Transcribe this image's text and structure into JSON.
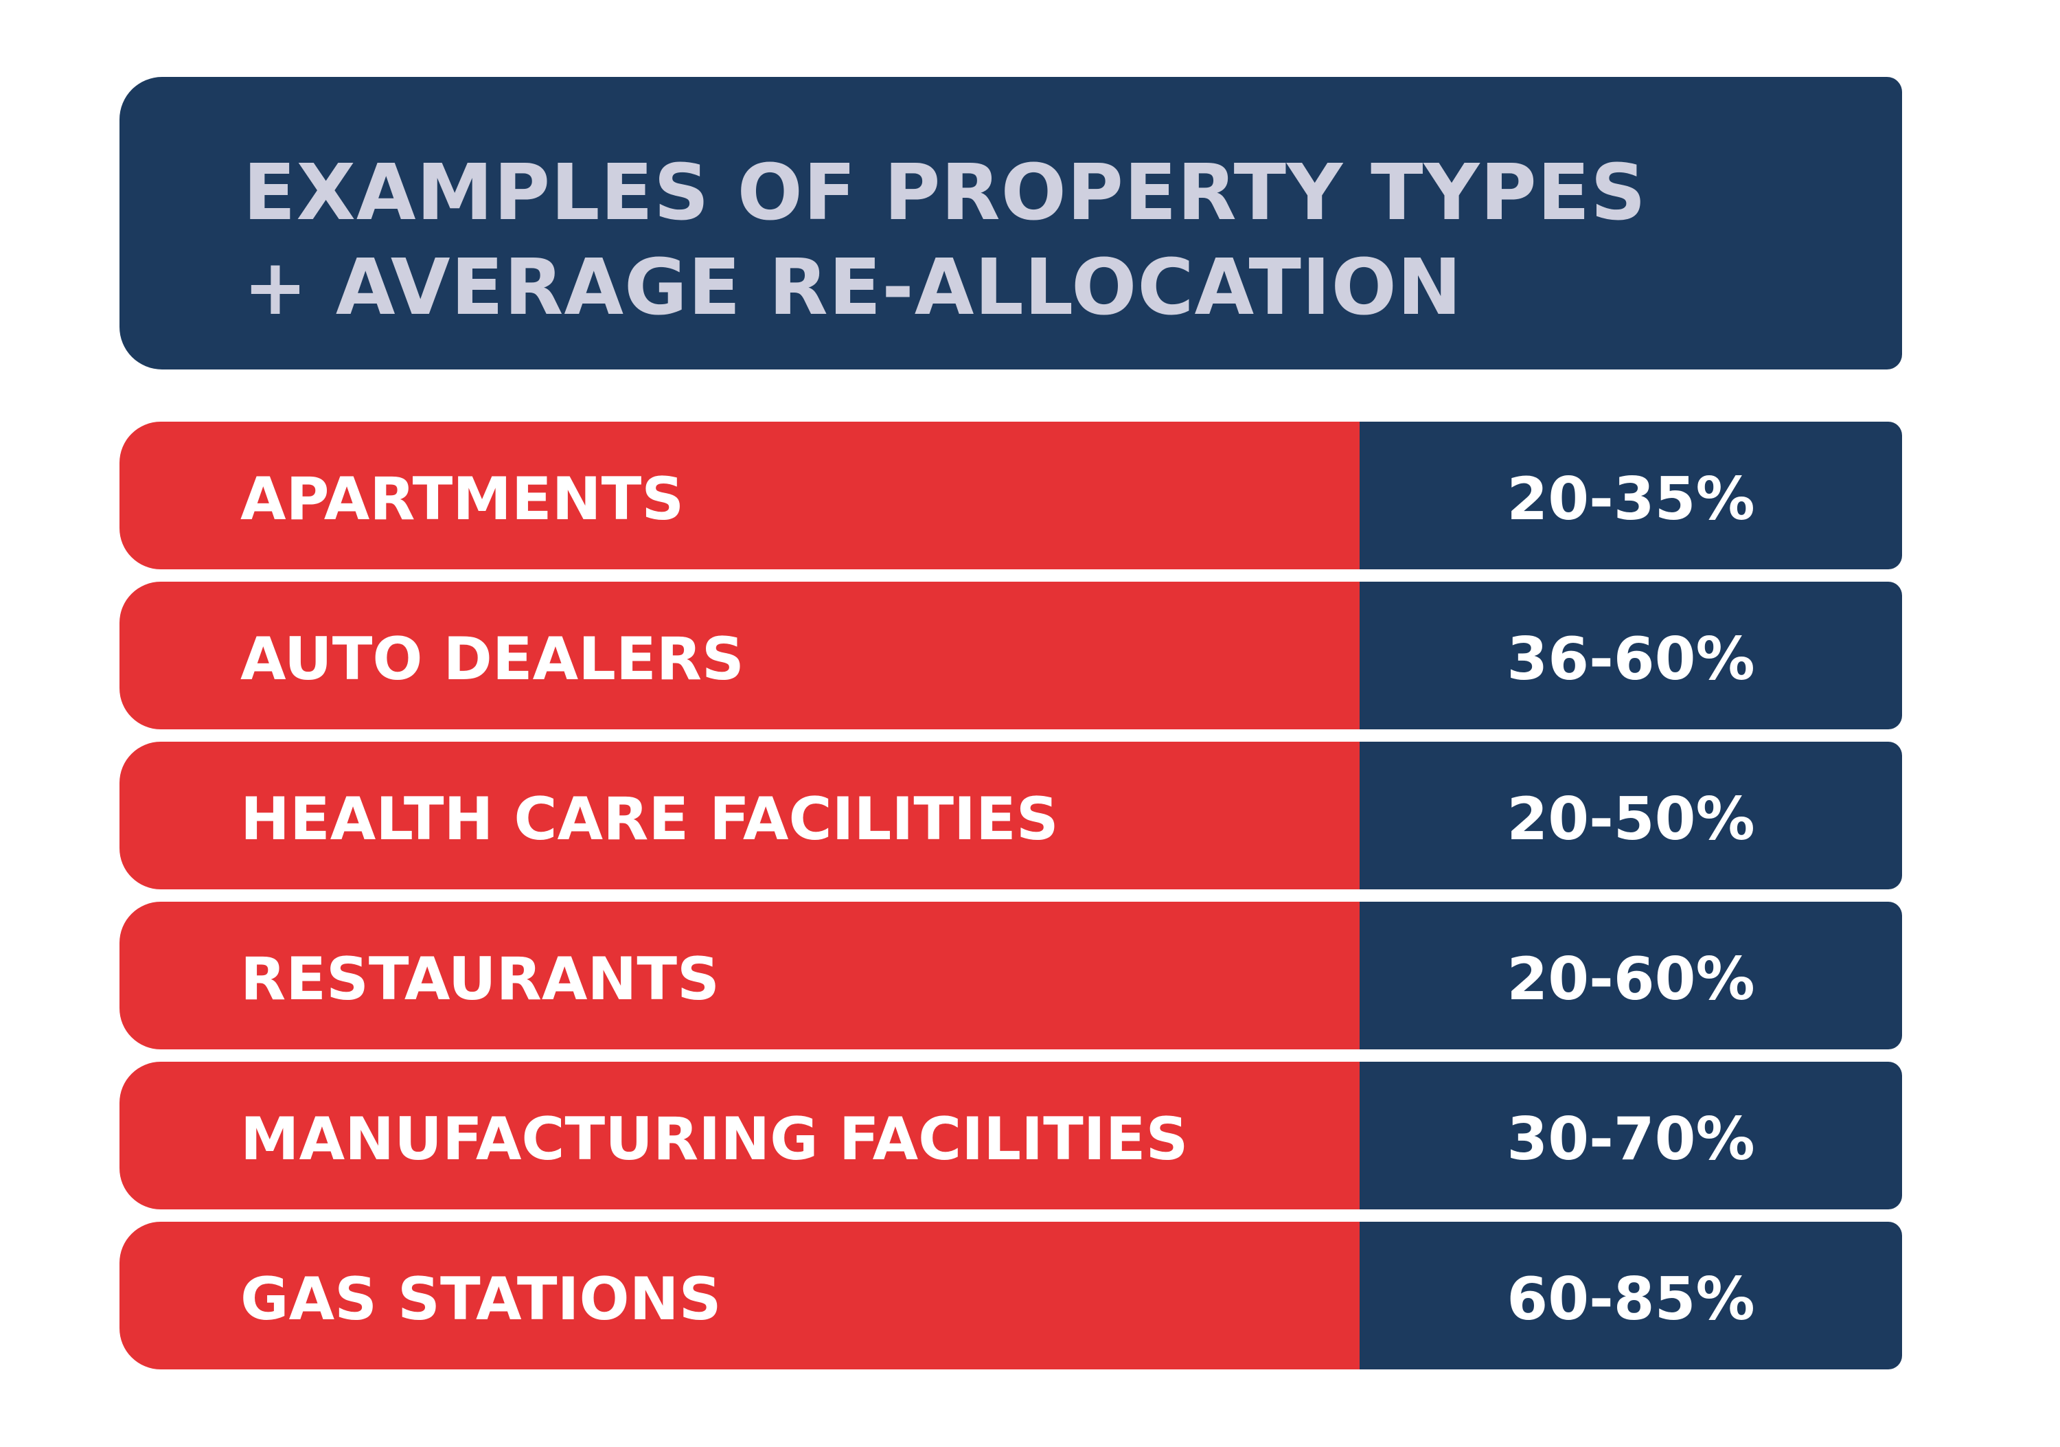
{
  "header": {
    "title_line1": "EXAMPLES OF PROPERTY TYPES",
    "title_line2": "+ AVERAGE RE-ALLOCATION"
  },
  "rows": [
    {
      "label": "APARTMENTS",
      "value": "20-35%"
    },
    {
      "label": "AUTO DEALERS",
      "value": "36-60%"
    },
    {
      "label": "HEALTH CARE FACILITIES",
      "value": "20-50%"
    },
    {
      "label": "RESTAURANTS",
      "value": "20-60%"
    },
    {
      "label": "MANUFACTURING FACILITIES",
      "value": "30-70%"
    },
    {
      "label": "GAS STATIONS",
      "value": "60-85%"
    }
  ],
  "colors": {
    "navy": "#1c3a5e",
    "red": "#e53235",
    "header_text": "#cfd0df",
    "row_text": "#ffffff"
  }
}
